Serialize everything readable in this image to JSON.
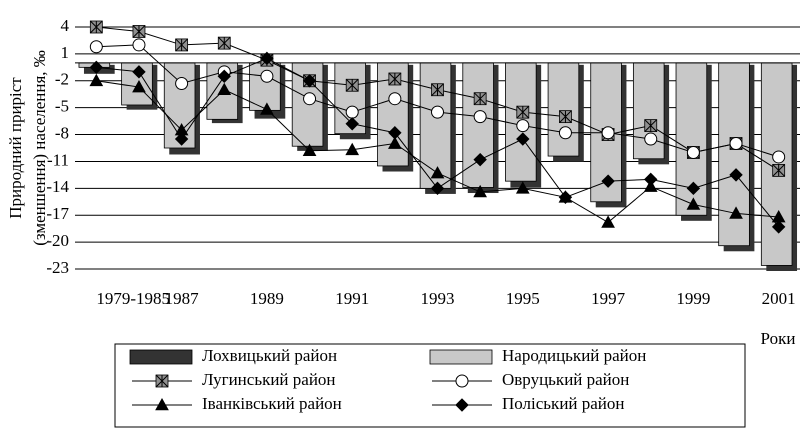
{
  "chart_data": {
    "type": "combo",
    "y_label": [
      "Природний приріст",
      "(зменшення) населення, ‰"
    ],
    "x_label": "Роки",
    "categories": [
      "1979-1985",
      null,
      "1987",
      null,
      "1989",
      null,
      "1991",
      null,
      "1993",
      null,
      "1995",
      null,
      "1997",
      null,
      "1999",
      null,
      "2001"
    ],
    "ylim": [
      -23,
      4
    ],
    "yticks": [
      4,
      1,
      -2,
      -5,
      -8,
      -11,
      -14,
      -17,
      -20,
      -23
    ],
    "grid": true,
    "legend": "bottom",
    "series": [
      {
        "name": "Лохвицький район",
        "type": "bar",
        "color": "#333333",
        "values": [
          -1,
          -5,
          -10,
          -6.5,
          -6,
          -9.6,
          -8.3,
          -11.9,
          -14.4,
          -14.3,
          -13.7,
          -10.8,
          -15.9,
          -11.1,
          -17.4,
          -20.8,
          -23
        ]
      },
      {
        "name": "Народицький район",
        "type": "bar",
        "color": "#c8c8c8",
        "values": [
          -0.5,
          -4.7,
          -9.5,
          -6.3,
          -5.3,
          -9.3,
          -7.9,
          -11.5,
          -14,
          -13.9,
          -13.2,
          -10.4,
          -15.5,
          -10.7,
          -17,
          -20.4,
          -22.6
        ]
      },
      {
        "name": "Лугинський район",
        "type": "line",
        "marker": "asterisk",
        "color": "#909090",
        "values": [
          4,
          3.5,
          2,
          2.2,
          0.3,
          -2,
          -2.5,
          -1.8,
          -3,
          -4,
          -5.5,
          -6,
          -8,
          -7,
          -10,
          -9,
          -12
        ]
      },
      {
        "name": "Овруцький район",
        "type": "line",
        "marker": "circle",
        "color": "#ffffff",
        "values": [
          1.8,
          2,
          -2.3,
          -1,
          -1.5,
          -4,
          -5.5,
          -4,
          -5.5,
          -6,
          -7,
          -7.8,
          -7.8,
          -8.5,
          -10,
          -9,
          -10.5
        ]
      },
      {
        "name": "Іванківський район",
        "type": "line",
        "marker": "triangle",
        "color": "#000000",
        "values": [
          -2,
          -2.7,
          -7.5,
          -3,
          -5.2,
          -9.8,
          -9.7,
          -9,
          -12.3,
          -14.4,
          -14,
          -15,
          -17.8,
          -13.8,
          -15.8,
          -16.8,
          -17.2
        ]
      },
      {
        "name": "Поліський район",
        "type": "line",
        "marker": "diamond",
        "color": "#000000",
        "values": [
          -0.5,
          -1,
          -8.5,
          -1.5,
          0.5,
          -2,
          -6.8,
          -7.8,
          -14,
          -10.8,
          -8.5,
          -15,
          -13.2,
          -13,
          -14,
          -12.5,
          -18.3
        ]
      }
    ]
  }
}
